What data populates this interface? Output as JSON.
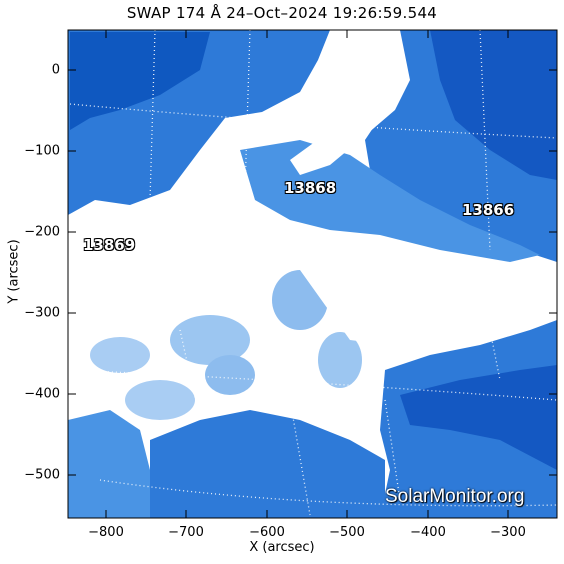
{
  "title": "SWAP 174 Å 24–Oct–2024 19:26:59.544",
  "x_axis": {
    "label": "X (arcsec)",
    "ticks": [
      "−800",
      "−700",
      "−600",
      "−500",
      "−400",
      "−300"
    ]
  },
  "y_axis": {
    "label": "Y (arcsec)",
    "ticks": [
      "0",
      "−100",
      "−200",
      "−300",
      "−400",
      "−500"
    ]
  },
  "regions": [
    "13868",
    "13866",
    "13869"
  ],
  "watermark": "SolarMonitor.org",
  "colors": {
    "deep": "#0a4fb8",
    "mid": "#3d8be0",
    "light": "#b8d6f5",
    "saturated": "#ffffff"
  }
}
